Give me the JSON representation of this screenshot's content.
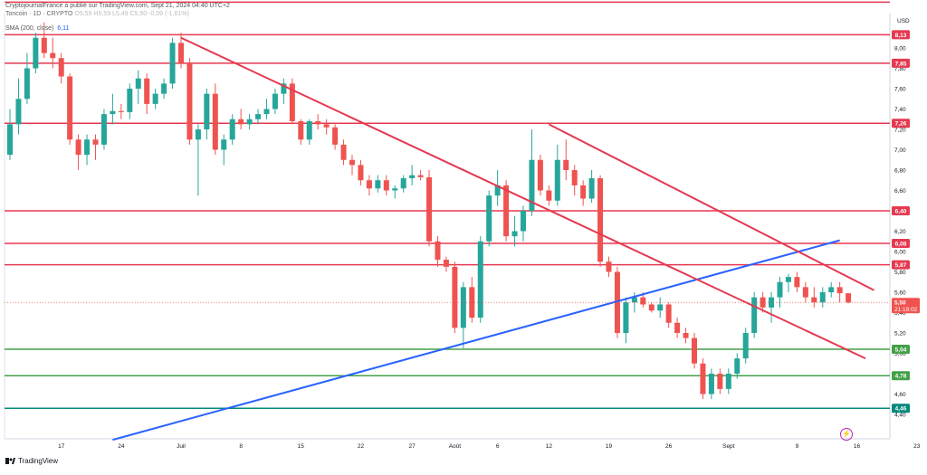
{
  "header": {
    "publisher": "CryptojournalFrance a publié sur TradingView.com, Sept 21, 2024 04:40 UTC+2",
    "symbol": "Toncoin · 1D · CRYPTO",
    "ohlc": "O5,59 H5,59 L5,49 C5,50 -0,09 (-1,61%)",
    "indicator_label": "SMA (200, close)",
    "indicator_value": "6,11"
  },
  "footer": {
    "brand": "TradingView"
  },
  "chart_data": {
    "type": "candlestick",
    "currency": "USD",
    "ylim": [
      4.2,
      8.3
    ],
    "y_ticks": [
      "8,00",
      "7,80",
      "7,60",
      "7,40",
      "7,20",
      "7,00",
      "6,80",
      "6,60",
      "6,40",
      "6,20",
      "6,00",
      "5,80",
      "5,60",
      "5,40",
      "5,20",
      "5,00",
      "4,80",
      "4,60",
      "4,40"
    ],
    "x_ticks": [
      {
        "i": 6,
        "label": "17"
      },
      {
        "i": 13,
        "label": "24"
      },
      {
        "i": 20,
        "label": "Juil"
      },
      {
        "i": 27,
        "label": "8"
      },
      {
        "i": 34,
        "label": "15"
      },
      {
        "i": 41,
        "label": "22"
      },
      {
        "i": 47,
        "label": "27"
      },
      {
        "i": 52,
        "label": "Août"
      },
      {
        "i": 57,
        "label": "6"
      },
      {
        "i": 63,
        "label": "12"
      },
      {
        "i": 70,
        "label": "19"
      },
      {
        "i": 77,
        "label": "26"
      },
      {
        "i": 84,
        "label": "Sept"
      },
      {
        "i": 92,
        "label": "9"
      },
      {
        "i": 99,
        "label": "16"
      },
      {
        "i": 106,
        "label": "23"
      }
    ],
    "candles": [
      [
        6.95,
        7.4,
        6.9,
        7.25
      ],
      [
        7.25,
        7.7,
        7.15,
        7.5
      ],
      [
        7.5,
        7.95,
        7.45,
        7.8
      ],
      [
        7.8,
        8.15,
        7.75,
        8.1
      ],
      [
        8.1,
        8.25,
        7.9,
        7.95
      ],
      [
        7.95,
        8.1,
        7.8,
        7.9
      ],
      [
        7.9,
        7.95,
        7.65,
        7.72
      ],
      [
        7.72,
        7.75,
        7.05,
        7.1
      ],
      [
        7.1,
        7.15,
        6.8,
        6.95
      ],
      [
        6.95,
        7.15,
        6.85,
        7.1
      ],
      [
        7.1,
        7.15,
        6.9,
        7.05
      ],
      [
        7.05,
        7.4,
        7.0,
        7.35
      ],
      [
        7.35,
        7.55,
        7.25,
        7.38
      ],
      [
        7.38,
        7.45,
        7.3,
        7.37
      ],
      [
        7.37,
        7.65,
        7.3,
        7.6
      ],
      [
        7.6,
        7.78,
        7.45,
        7.7
      ],
      [
        7.7,
        7.75,
        7.35,
        7.45
      ],
      [
        7.45,
        7.6,
        7.4,
        7.55
      ],
      [
        7.55,
        7.7,
        7.5,
        7.65
      ],
      [
        7.65,
        8.1,
        7.6,
        8.05
      ],
      [
        8.05,
        8.15,
        7.8,
        7.85
      ],
      [
        7.85,
        7.9,
        7.05,
        7.1
      ],
      [
        7.1,
        7.25,
        6.55,
        7.2
      ],
      [
        7.2,
        7.6,
        7.1,
        7.55
      ],
      [
        7.55,
        7.65,
        6.95,
        7.0
      ],
      [
        7.0,
        7.15,
        6.85,
        7.1
      ],
      [
        7.1,
        7.35,
        7.05,
        7.3
      ],
      [
        7.3,
        7.4,
        7.2,
        7.25
      ],
      [
        7.25,
        7.35,
        7.2,
        7.3
      ],
      [
        7.3,
        7.4,
        7.25,
        7.35
      ],
      [
        7.35,
        7.5,
        7.3,
        7.4
      ],
      [
        7.4,
        7.6,
        7.35,
        7.55
      ],
      [
        7.55,
        7.7,
        7.45,
        7.65
      ],
      [
        7.65,
        7.7,
        7.25,
        7.28
      ],
      [
        7.28,
        7.3,
        7.05,
        7.1
      ],
      [
        7.1,
        7.3,
        7.05,
        7.28
      ],
      [
        7.28,
        7.35,
        7.2,
        7.25
      ],
      [
        7.25,
        7.3,
        7.15,
        7.22
      ],
      [
        7.22,
        7.25,
        7.0,
        7.05
      ],
      [
        7.05,
        7.1,
        6.85,
        6.9
      ],
      [
        6.9,
        6.95,
        6.75,
        6.85
      ],
      [
        6.85,
        6.9,
        6.65,
        6.7
      ],
      [
        6.7,
        6.75,
        6.55,
        6.62
      ],
      [
        6.62,
        6.75,
        6.58,
        6.7
      ],
      [
        6.7,
        6.75,
        6.55,
        6.6
      ],
      [
        6.6,
        6.65,
        6.52,
        6.62
      ],
      [
        6.62,
        6.75,
        6.58,
        6.72
      ],
      [
        6.72,
        6.85,
        6.65,
        6.75
      ],
      [
        6.75,
        6.8,
        6.7,
        6.73
      ],
      [
        6.73,
        6.8,
        6.05,
        6.1
      ],
      [
        6.1,
        6.15,
        5.85,
        5.92
      ],
      [
        5.92,
        5.95,
        5.8,
        5.85
      ],
      [
        5.85,
        5.9,
        5.2,
        5.25
      ],
      [
        5.25,
        5.7,
        5.05,
        5.65
      ],
      [
        5.65,
        5.75,
        5.3,
        5.35
      ],
      [
        5.35,
        6.15,
        5.3,
        6.1
      ],
      [
        6.1,
        6.6,
        6.05,
        6.55
      ],
      [
        6.55,
        6.8,
        6.45,
        6.65
      ],
      [
        6.65,
        6.7,
        6.1,
        6.15
      ],
      [
        6.15,
        6.35,
        6.05,
        6.2
      ],
      [
        6.2,
        6.45,
        6.1,
        6.4
      ],
      [
        6.4,
        7.2,
        6.35,
        6.9
      ],
      [
        6.9,
        6.95,
        6.55,
        6.6
      ],
      [
        6.6,
        6.65,
        6.45,
        6.5
      ],
      [
        6.5,
        7.05,
        6.45,
        6.9
      ],
      [
        6.9,
        7.1,
        6.7,
        6.8
      ],
      [
        6.8,
        6.85,
        6.55,
        6.65
      ],
      [
        6.65,
        6.7,
        6.45,
        6.52
      ],
      [
        6.52,
        6.8,
        6.48,
        6.72
      ],
      [
        6.72,
        6.75,
        5.85,
        5.9
      ],
      [
        5.9,
        5.95,
        5.75,
        5.8
      ],
      [
        5.8,
        5.85,
        5.15,
        5.2
      ],
      [
        5.2,
        5.55,
        5.1,
        5.5
      ],
      [
        5.5,
        5.6,
        5.4,
        5.55
      ],
      [
        5.55,
        5.6,
        5.45,
        5.48
      ],
      [
        5.48,
        5.5,
        5.4,
        5.42
      ],
      [
        5.42,
        5.55,
        5.35,
        5.48
      ],
      [
        5.48,
        5.5,
        5.25,
        5.3
      ],
      [
        5.3,
        5.35,
        5.15,
        5.2
      ],
      [
        5.2,
        5.25,
        5.1,
        5.15
      ],
      [
        5.15,
        5.2,
        4.85,
        4.9
      ],
      [
        4.9,
        4.95,
        4.55,
        4.6
      ],
      [
        4.6,
        4.85,
        4.55,
        4.8
      ],
      [
        4.8,
        4.85,
        4.6,
        4.65
      ],
      [
        4.65,
        4.85,
        4.6,
        4.8
      ],
      [
        4.8,
        5.0,
        4.75,
        4.95
      ],
      [
        4.95,
        5.25,
        4.9,
        5.2
      ],
      [
        5.2,
        5.6,
        5.15,
        5.55
      ],
      [
        5.55,
        5.6,
        5.4,
        5.45
      ],
      [
        5.45,
        5.6,
        5.3,
        5.55
      ],
      [
        5.55,
        5.75,
        5.45,
        5.7
      ],
      [
        5.7,
        5.78,
        5.6,
        5.75
      ],
      [
        5.75,
        5.8,
        5.6,
        5.65
      ],
      [
        5.65,
        5.7,
        5.5,
        5.55
      ],
      [
        5.55,
        5.65,
        5.45,
        5.5
      ],
      [
        5.5,
        5.65,
        5.45,
        5.6
      ],
      [
        5.6,
        5.7,
        5.55,
        5.65
      ],
      [
        5.65,
        5.7,
        5.5,
        5.59
      ],
      [
        5.59,
        5.59,
        5.49,
        5.5
      ]
    ],
    "sma_200": {
      "name": "SMA (200, close)",
      "start": [
        12,
        4.15
      ],
      "end": [
        97,
        6.11
      ]
    },
    "trendlines": [
      {
        "from": [
          20,
          8.1
        ],
        "to": [
          100,
          4.95
        ]
      },
      {
        "from": [
          63,
          7.25
        ],
        "to": [
          101,
          5.62
        ]
      }
    ],
    "horizontal_levels": [
      {
        "value": 8.45,
        "label": "",
        "color": "#e53950"
      },
      {
        "value": 8.13,
        "label": "8,13",
        "color": "#e53950"
      },
      {
        "value": 7.85,
        "label": "7,85",
        "color": "#e53950"
      },
      {
        "value": 7.26,
        "label": "7,26",
        "color": "#e53950"
      },
      {
        "value": 6.4,
        "label": "6,40",
        "color": "#e53950"
      },
      {
        "value": 6.08,
        "label": "6,08",
        "color": "#e53950"
      },
      {
        "value": 5.87,
        "label": "5,87",
        "color": "#e53950"
      },
      {
        "value": 5.04,
        "label": "5,04",
        "color": "#43a047"
      },
      {
        "value": 4.78,
        "label": "4,78",
        "color": "#43a047"
      },
      {
        "value": 4.46,
        "label": "4,46",
        "color": "#00897b"
      }
    ],
    "last_price": {
      "value": 5.5,
      "label": "5,50",
      "countdown": "21:19:02"
    },
    "colors": {
      "up": "#26a69a",
      "down": "#ef5350",
      "sma": "#2962ff",
      "trend": "#e53950"
    }
  }
}
